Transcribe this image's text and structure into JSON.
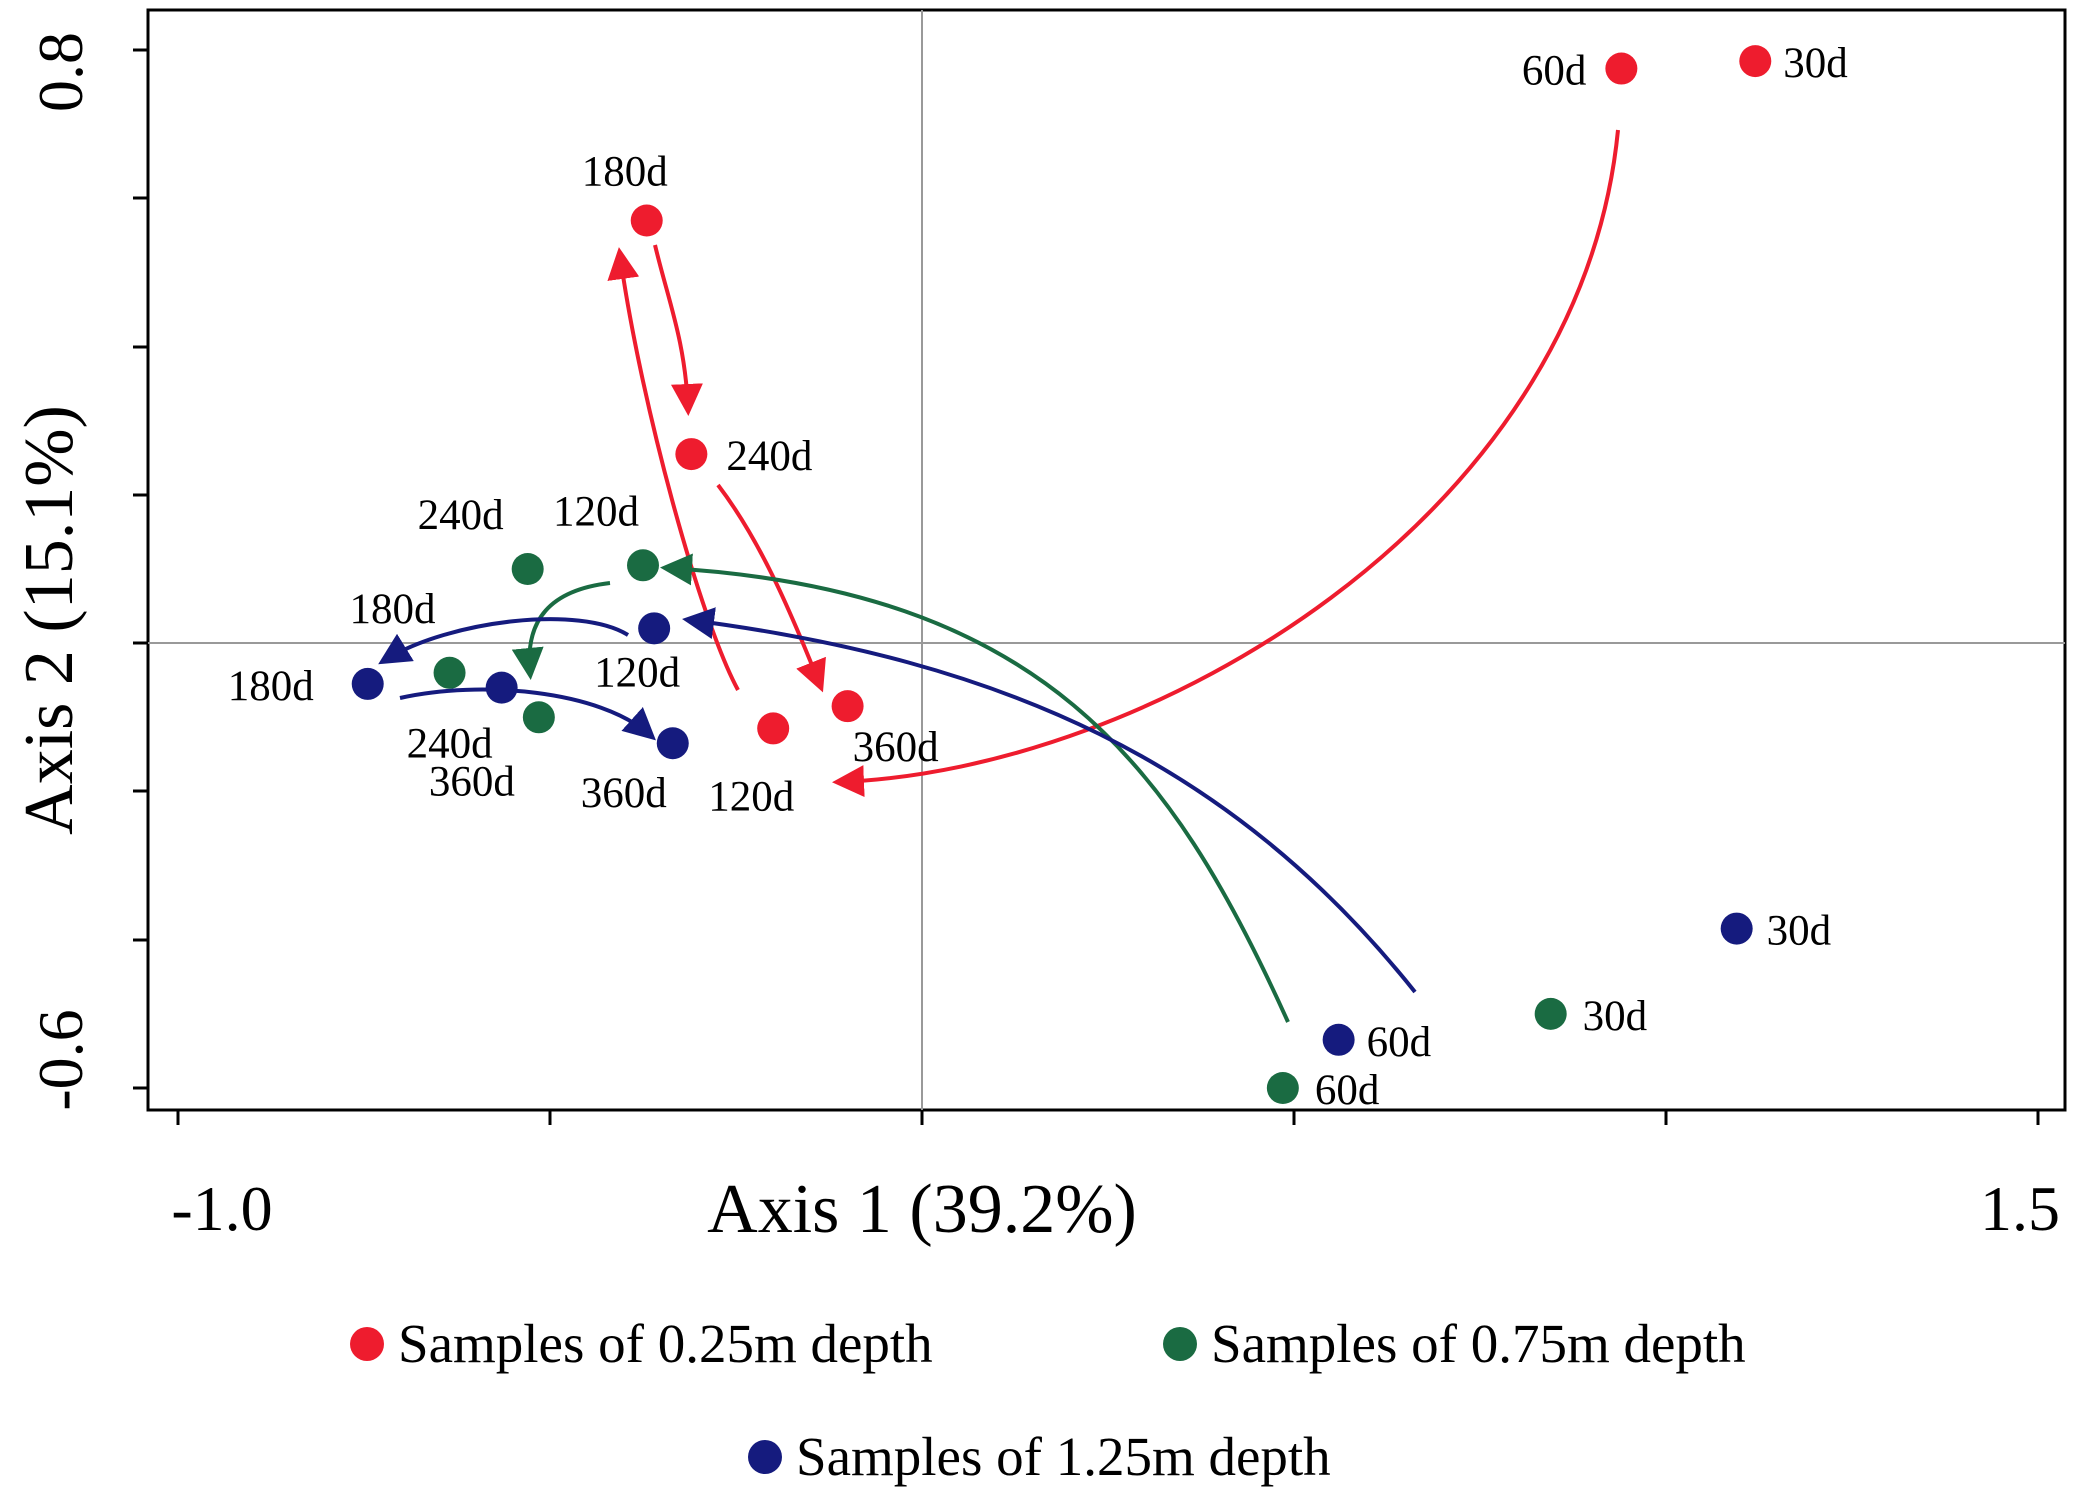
{
  "chart_data": {
    "type": "scatter",
    "xlabel": "Axis 1 (39.2%)",
    "ylabel": "Axis 2 (15.1%)",
    "xlim": [
      -1.0,
      1.5
    ],
    "ylim": [
      -0.6,
      0.8
    ],
    "x_tick_labels": [
      "-1.0",
      "1.5"
    ],
    "y_tick_labels": [
      "0.8",
      "-0.6"
    ],
    "reference_lines": {
      "x": 0.0,
      "y": 0.0
    },
    "grid": false,
    "legend_position": "bottom",
    "series": [
      {
        "name": "Samples of 0.25m depth",
        "color": "#ee1c2e",
        "points": [
          {
            "label": "30d",
            "x": 1.12,
            "y": 0.785
          },
          {
            "label": "60d",
            "x": 0.94,
            "y": 0.775
          },
          {
            "label": "120d",
            "x": -0.2,
            "y": -0.115
          },
          {
            "label": "180d",
            "x": -0.37,
            "y": 0.57
          },
          {
            "label": "240d",
            "x": -0.31,
            "y": 0.255
          },
          {
            "label": "360d",
            "x": -0.1,
            "y": -0.085
          }
        ],
        "trajectory": [
          "60d",
          "120d",
          "180d",
          "240d",
          "360d"
        ]
      },
      {
        "name": "Samples of 0.75m depth",
        "color": "#1a6b42",
        "points": [
          {
            "label": "30d",
            "x": 0.845,
            "y": -0.5
          },
          {
            "label": "60d",
            "x": 0.485,
            "y": -0.6
          },
          {
            "label": "120d",
            "x": -0.375,
            "y": 0.105
          },
          {
            "label": "180d",
            "x": -0.635,
            "y": -0.04
          },
          {
            "label": "240d",
            "x": -0.53,
            "y": 0.1
          },
          {
            "label": "360d",
            "x": -0.515,
            "y": -0.1
          }
        ],
        "trajectory": [
          "60d",
          "120d",
          "240d"
        ]
      },
      {
        "name": "Samples of 1.25m depth",
        "color": "#151b7e",
        "points": [
          {
            "label": "30d",
            "x": 1.095,
            "y": -0.385
          },
          {
            "label": "60d",
            "x": 0.56,
            "y": -0.535
          },
          {
            "label": "120d",
            "x": -0.36,
            "y": 0.02
          },
          {
            "label": "180d",
            "x": -0.745,
            "y": -0.055
          },
          {
            "label": "240d",
            "x": -0.565,
            "y": -0.06
          },
          {
            "label": "360d",
            "x": -0.335,
            "y": -0.135
          }
        ],
        "trajectory": [
          "60d",
          "120d",
          "180d",
          "240d",
          "360d"
        ]
      }
    ]
  }
}
